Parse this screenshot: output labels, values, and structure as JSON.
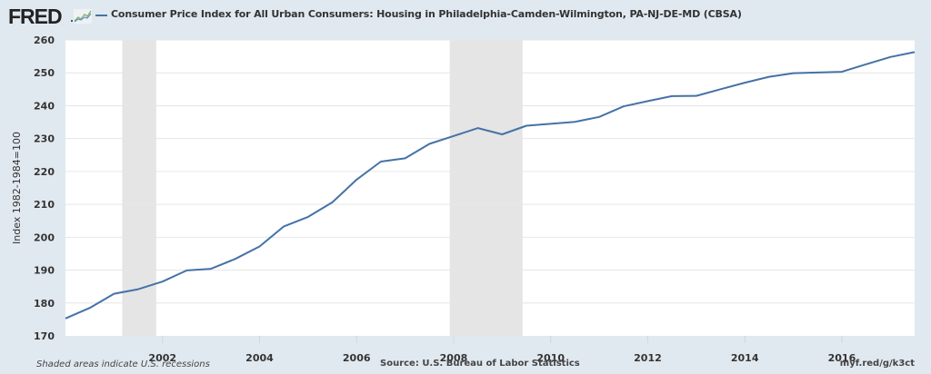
{
  "header": {
    "logo_text": "FRED",
    "logo_icon": "trend-chart-icon",
    "series_title": "Consumer Price Index for All Urban Consumers: Housing in Philadelphia-Camden-Wilmington, PA-NJ-DE-MD (CBSA)"
  },
  "footer": {
    "recession_note": "Shaded areas indicate U.S. recessions",
    "source": "Source: U.S. Bureau of Labor Statistics",
    "short_url": "myf.red/g/k3ct"
  },
  "colors": {
    "line": "#4572a7",
    "recession": "#e5e5e5",
    "plot_bg": "#ffffff",
    "page_bg": "#e1e9f0",
    "grid": "#e6e6e6"
  },
  "chart_data": {
    "type": "line",
    "title": "Consumer Price Index for All Urban Consumers: Housing in Philadelphia-Camden-Wilmington, PA-NJ-DE-MD (CBSA)",
    "xlabel": "",
    "ylabel": "Index 1982-1984=100",
    "xlim": [
      2000.0,
      2017.5
    ],
    "ylim": [
      170,
      260
    ],
    "x_ticks": [
      2002,
      2004,
      2006,
      2008,
      2010,
      2012,
      2014,
      2016
    ],
    "y_ticks": [
      170,
      180,
      190,
      200,
      210,
      220,
      230,
      240,
      250,
      260
    ],
    "grid": true,
    "legend": "top-left",
    "recessions": [
      {
        "start": 2001.17,
        "end": 2001.87
      },
      {
        "start": 2007.92,
        "end": 2009.42
      }
    ],
    "series": [
      {
        "name": "Consumer Price Index for All Urban Consumers: Housing in Philadelphia-Camden-Wilmington, PA-NJ-DE-MD (CBSA)",
        "x": [
          2000.0,
          2000.5,
          2001.0,
          2001.5,
          2002.0,
          2002.5,
          2003.0,
          2003.5,
          2004.0,
          2004.5,
          2005.0,
          2005.5,
          2006.0,
          2006.5,
          2007.0,
          2007.5,
          2008.0,
          2008.5,
          2009.0,
          2009.5,
          2010.0,
          2010.5,
          2011.0,
          2011.5,
          2012.0,
          2012.5,
          2013.0,
          2013.5,
          2014.0,
          2014.5,
          2015.0,
          2015.5,
          2016.0,
          2016.5,
          2017.0,
          2017.5
        ],
        "values": [
          175.3,
          178.5,
          182.8,
          184.2,
          186.5,
          189.9,
          190.4,
          193.4,
          197.2,
          203.3,
          206.2,
          210.6,
          217.5,
          223.0,
          224.0,
          228.4,
          230.8,
          233.2,
          231.3,
          233.9,
          234.5,
          235.1,
          236.6,
          239.8,
          241.4,
          242.9,
          243.0,
          245.0,
          247.0,
          248.8,
          249.9,
          250.1,
          250.3,
          252.6,
          254.8,
          256.3
        ]
      }
    ]
  }
}
